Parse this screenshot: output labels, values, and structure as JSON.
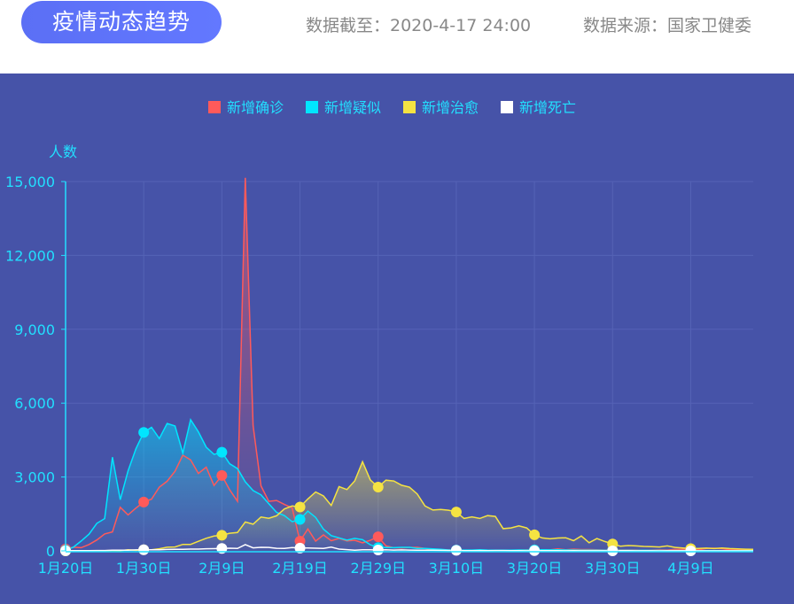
{
  "header": {
    "title": "疫情动态趋势",
    "data_cutoff": "数据截至：2020-4-17 24:00",
    "data_source": "数据来源：国家卫健委"
  },
  "colors": {
    "background": "#4653a8",
    "axis": "#22e0ff",
    "grid": "#5563b6"
  },
  "chart_data": {
    "type": "line",
    "ylabel": "人数",
    "ylim": [
      0,
      15000
    ],
    "yticks": [
      "0",
      "3,000",
      "6,000",
      "9,000",
      "12,000",
      "15,000"
    ],
    "x_start": "2020-01-20",
    "x_end": "2020-04-17",
    "xtick_labels": [
      "1月20日",
      "1月30日",
      "2月9日",
      "2月19日",
      "2月29日",
      "3月10日",
      "3月20日",
      "3月30日",
      "4月9日"
    ],
    "grid": true,
    "legend_position": "top-center",
    "series": [
      {
        "name": "新增确诊",
        "color": "#ff5a5a",
        "area": true,
        "values": [
          77,
          149,
          131,
          259,
          444,
          688,
          769,
          1771,
          1459,
          1737,
          1982,
          2102,
          2590,
          2829,
          3235,
          3887,
          3694,
          3143,
          3399,
          2656,
          3062,
          2478,
          2015,
          15152,
          5090,
          2641,
          2009,
          2048,
          1886,
          1749,
          394,
          889,
          397,
          648,
          409,
          508,
          406,
          433,
          327,
          427,
          573,
          202,
          125,
          119,
          139,
          143,
          99,
          44,
          40,
          19,
          24,
          15,
          8,
          11,
          20,
          16,
          21,
          13,
          34,
          39,
          41,
          46,
          39,
          78,
          47,
          67,
          55,
          54,
          45,
          31,
          48,
          36,
          35,
          31,
          19,
          30,
          39,
          32,
          62,
          63,
          42,
          46,
          99,
          108,
          89,
          46,
          46,
          26,
          27
        ]
      },
      {
        "name": "新增疑似",
        "color": "#00e5ff",
        "area": true,
        "values": [
          27,
          150,
          400,
          680,
          1118,
          1309,
          3806,
          2077,
          3248,
          4148,
          4812,
          5019,
          4562,
          5173,
          5072,
          3971,
          5328,
          4833,
          4214,
          3916,
          4008,
          3536,
          3342,
          2807,
          2450,
          2277,
          1918,
          1563,
          1432,
          1185,
          1277,
          1614,
          1361,
          882,
          620,
          530,
          439,
          508,
          452,
          248,
          132,
          141,
          129,
          143,
          143,
          102,
          99,
          84,
          60,
          36,
          31,
          33,
          33,
          45,
          31,
          28,
          27,
          26,
          35,
          31,
          40,
          45,
          38,
          42,
          35,
          32,
          30,
          28,
          25,
          20,
          26,
          20,
          22,
          18,
          20,
          17,
          19,
          15,
          15,
          14,
          12,
          12,
          10,
          10,
          9,
          9,
          8,
          8,
          7
        ]
      },
      {
        "name": "新增治愈",
        "color": "#f5e342",
        "area": true,
        "values": [
          0,
          0,
          6,
          3,
          3,
          11,
          15,
          9,
          43,
          21,
          43,
          47,
          85,
          147,
          157,
          262,
          261,
          387,
          510,
          600,
          632,
          716,
          744,
          1171,
          1081,
          1373,
          1323,
          1425,
          1701,
          1824,
          1779,
          2109,
          2393,
          2230,
          1846,
          2612,
          2491,
          2841,
          3622,
          2881,
          2589,
          2872,
          2837,
          2664,
          2589,
          2314,
          1822,
          1660,
          1684,
          1652,
          1578,
          1318,
          1378,
          1318,
          1430,
          1401,
          902,
          930,
          1016,
          933,
          650,
          525,
          488,
          520,
          534,
          415,
          603,
          330,
          500,
          382,
          281,
          190,
          215,
          200,
          180,
          170,
          160,
          200,
          140,
          120,
          90,
          100,
          110,
          95,
          120,
          95,
          80,
          70,
          60
        ]
      },
      {
        "name": "新增死亡",
        "color": "#ffffff",
        "area": false,
        "values": [
          3,
          6,
          9,
          8,
          16,
          15,
          24,
          26,
          26,
          38,
          43,
          46,
          45,
          57,
          64,
          65,
          73,
          73,
          86,
          89,
          97,
          108,
          97,
          254,
          121,
          143,
          142,
          105,
          98,
          136,
          114,
          118,
          109,
          97,
          150,
          71,
          52,
          29,
          44,
          47,
          35,
          42,
          31,
          38,
          31,
          30,
          28,
          27,
          22,
          17,
          22,
          11,
          7,
          13,
          10,
          14,
          13,
          11,
          8,
          3,
          7,
          6,
          9,
          7,
          4,
          6,
          5,
          3,
          5,
          4,
          1,
          7,
          6,
          4,
          4,
          3,
          1,
          2,
          2,
          2,
          1,
          1,
          1,
          1,
          1,
          1,
          0,
          1,
          0
        ]
      }
    ]
  }
}
